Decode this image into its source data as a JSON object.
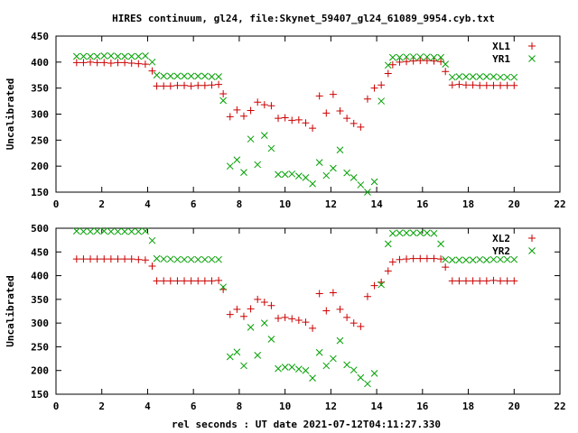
{
  "figure": {
    "title": "HIRES continuum, gl24, file:Skynet_59407_gl24_61089_9954.cyb.txt",
    "xlabel": "rel seconds : UT date 2021-07-12T04:11:27.330"
  },
  "chart_data": [
    {
      "type": "scatter",
      "ylabel": "Uncalibrated",
      "xlim": [
        0,
        22
      ],
      "ylim": [
        150,
        450
      ],
      "xticks": [
        "0",
        "2",
        "4",
        "6",
        "8",
        "10",
        "12",
        "14",
        "16",
        "18",
        "20",
        "22"
      ],
      "yticks": [
        "150",
        "200",
        "250",
        "300",
        "350",
        "400",
        "450"
      ],
      "grid": false,
      "legend": "top-right",
      "series": [
        {
          "name": "XL1",
          "marker": "plus",
          "color": "#cc0000",
          "points": [
            [
              0.9,
              399
            ],
            [
              1.2,
              399
            ],
            [
              1.5,
              400
            ],
            [
              1.8,
              399
            ],
            [
              2.1,
              399
            ],
            [
              2.4,
              398
            ],
            [
              2.7,
              399
            ],
            [
              3.0,
              399
            ],
            [
              3.3,
              398
            ],
            [
              3.6,
              397
            ],
            [
              3.9,
              396
            ],
            [
              4.2,
              383
            ],
            [
              4.4,
              354
            ],
            [
              4.7,
              354
            ],
            [
              5.0,
              354
            ],
            [
              5.3,
              355
            ],
            [
              5.6,
              355
            ],
            [
              5.9,
              354
            ],
            [
              6.2,
              355
            ],
            [
              6.5,
              355
            ],
            [
              6.8,
              356
            ],
            [
              7.1,
              357
            ],
            [
              7.3,
              339
            ],
            [
              7.6,
              295
            ],
            [
              7.9,
              308
            ],
            [
              8.2,
              296
            ],
            [
              8.5,
              307
            ],
            [
              8.8,
              323
            ],
            [
              9.1,
              318
            ],
            [
              9.4,
              316
            ],
            [
              9.7,
              292
            ],
            [
              10.0,
              293
            ],
            [
              10.3,
              288
            ],
            [
              10.6,
              289
            ],
            [
              10.9,
              283
            ],
            [
              11.2,
              273
            ],
            [
              11.5,
              335
            ],
            [
              11.8,
              302
            ],
            [
              12.1,
              338
            ],
            [
              12.4,
              306
            ],
            [
              12.7,
              292
            ],
            [
              13.0,
              282
            ],
            [
              13.3,
              275
            ],
            [
              13.6,
              329
            ],
            [
              13.9,
              350
            ],
            [
              14.2,
              356
            ],
            [
              14.5,
              378
            ],
            [
              14.7,
              395
            ],
            [
              15.0,
              400
            ],
            [
              15.3,
              401
            ],
            [
              15.6,
              402
            ],
            [
              15.9,
              403
            ],
            [
              16.2,
              403
            ],
            [
              16.5,
              402
            ],
            [
              16.8,
              401
            ],
            [
              17.0,
              382
            ],
            [
              17.3,
              356
            ],
            [
              17.6,
              357
            ],
            [
              17.9,
              356
            ],
            [
              18.2,
              356
            ],
            [
              18.5,
              355
            ],
            [
              18.8,
              355
            ],
            [
              19.1,
              355
            ],
            [
              19.4,
              355
            ],
            [
              19.7,
              355
            ],
            [
              20.0,
              355
            ]
          ]
        },
        {
          "name": "YR1",
          "marker": "cross",
          "color": "#00a000",
          "points": [
            [
              0.9,
              411
            ],
            [
              1.2,
              411
            ],
            [
              1.5,
              411
            ],
            [
              1.8,
              411
            ],
            [
              2.1,
              412
            ],
            [
              2.4,
              412
            ],
            [
              2.7,
              411
            ],
            [
              3.0,
              411
            ],
            [
              3.3,
              411
            ],
            [
              3.6,
              411
            ],
            [
              3.9,
              412
            ],
            [
              4.2,
              400
            ],
            [
              4.4,
              375
            ],
            [
              4.7,
              373
            ],
            [
              5.0,
              373
            ],
            [
              5.3,
              373
            ],
            [
              5.6,
              373
            ],
            [
              5.9,
              373
            ],
            [
              6.2,
              373
            ],
            [
              6.5,
              373
            ],
            [
              6.8,
              372
            ],
            [
              7.1,
              372
            ],
            [
              7.3,
              326
            ],
            [
              7.6,
              200
            ],
            [
              7.9,
              212
            ],
            [
              8.2,
              188
            ],
            [
              8.5,
              252
            ],
            [
              8.8,
              203
            ],
            [
              9.1,
              259
            ],
            [
              9.4,
              234
            ],
            [
              9.7,
              184
            ],
            [
              10.0,
              184
            ],
            [
              10.3,
              185
            ],
            [
              10.6,
              181
            ],
            [
              10.9,
              178
            ],
            [
              11.2,
              166
            ],
            [
              11.5,
              207
            ],
            [
              11.8,
              182
            ],
            [
              12.1,
              196
            ],
            [
              12.4,
              231
            ],
            [
              12.7,
              187
            ],
            [
              13.0,
              178
            ],
            [
              13.3,
              164
            ],
            [
              13.6,
              150
            ],
            [
              13.9,
              170
            ],
            [
              14.2,
              325
            ],
            [
              14.5,
              394
            ],
            [
              14.7,
              409
            ],
            [
              15.0,
              409
            ],
            [
              15.3,
              410
            ],
            [
              15.6,
              410
            ],
            [
              15.9,
              410
            ],
            [
              16.2,
              410
            ],
            [
              16.5,
              409
            ],
            [
              16.8,
              409
            ],
            [
              17.0,
              396
            ],
            [
              17.3,
              371
            ],
            [
              17.6,
              372
            ],
            [
              17.9,
              372
            ],
            [
              18.2,
              372
            ],
            [
              18.5,
              372
            ],
            [
              18.8,
              372
            ],
            [
              19.1,
              372
            ],
            [
              19.4,
              371
            ],
            [
              19.7,
              371
            ],
            [
              20.0,
              371
            ]
          ]
        }
      ]
    },
    {
      "type": "scatter",
      "ylabel": "Uncalibrated",
      "xlim": [
        0,
        22
      ],
      "ylim": [
        150,
        500
      ],
      "xticks": [
        "0",
        "2",
        "4",
        "6",
        "8",
        "10",
        "12",
        "14",
        "16",
        "18",
        "20",
        "22"
      ],
      "yticks": [
        "150",
        "200",
        "250",
        "300",
        "350",
        "400",
        "450",
        "500"
      ],
      "grid": false,
      "legend": "top-right",
      "series": [
        {
          "name": "XL2",
          "marker": "plus",
          "color": "#cc0000",
          "points": [
            [
              0.9,
              435
            ],
            [
              1.2,
              435
            ],
            [
              1.5,
              435
            ],
            [
              1.8,
              435
            ],
            [
              2.1,
              435
            ],
            [
              2.4,
              435
            ],
            [
              2.7,
              435
            ],
            [
              3.0,
              435
            ],
            [
              3.3,
              435
            ],
            [
              3.6,
              434
            ],
            [
              3.9,
              433
            ],
            [
              4.2,
              420
            ],
            [
              4.4,
              389
            ],
            [
              4.7,
              389
            ],
            [
              5.0,
              389
            ],
            [
              5.3,
              389
            ],
            [
              5.6,
              389
            ],
            [
              5.9,
              389
            ],
            [
              6.2,
              389
            ],
            [
              6.5,
              389
            ],
            [
              6.8,
              389
            ],
            [
              7.1,
              390
            ],
            [
              7.3,
              371
            ],
            [
              7.6,
              318
            ],
            [
              7.9,
              329
            ],
            [
              8.2,
              314
            ],
            [
              8.5,
              330
            ],
            [
              8.8,
              350
            ],
            [
              9.1,
              344
            ],
            [
              9.4,
              337
            ],
            [
              9.7,
              310
            ],
            [
              10.0,
              312
            ],
            [
              10.3,
              309
            ],
            [
              10.6,
              306
            ],
            [
              10.9,
              302
            ],
            [
              11.2,
              289
            ],
            [
              11.5,
              362
            ],
            [
              11.8,
              326
            ],
            [
              12.1,
              364
            ],
            [
              12.4,
              329
            ],
            [
              12.7,
              312
            ],
            [
              13.0,
              300
            ],
            [
              13.3,
              293
            ],
            [
              13.6,
              356
            ],
            [
              13.9,
              379
            ],
            [
              14.2,
              386
            ],
            [
              14.5,
              410
            ],
            [
              14.7,
              429
            ],
            [
              15.0,
              434
            ],
            [
              15.3,
              435
            ],
            [
              15.6,
              436
            ],
            [
              15.9,
              436
            ],
            [
              16.2,
              436
            ],
            [
              16.5,
              436
            ],
            [
              16.8,
              435
            ],
            [
              17.0,
              418
            ],
            [
              17.3,
              389
            ],
            [
              17.6,
              389
            ],
            [
              17.9,
              389
            ],
            [
              18.2,
              389
            ],
            [
              18.5,
              389
            ],
            [
              18.8,
              389
            ],
            [
              19.1,
              390
            ],
            [
              19.4,
              389
            ],
            [
              19.7,
              389
            ],
            [
              20.0,
              389
            ]
          ]
        },
        {
          "name": "YR2",
          "marker": "cross",
          "color": "#00a000",
          "points": [
            [
              0.9,
              494
            ],
            [
              1.2,
              493
            ],
            [
              1.5,
              493
            ],
            [
              1.8,
              494
            ],
            [
              2.1,
              494
            ],
            [
              2.4,
              493
            ],
            [
              2.7,
              493
            ],
            [
              3.0,
              493
            ],
            [
              3.3,
              493
            ],
            [
              3.6,
              493
            ],
            [
              3.9,
              494
            ],
            [
              4.2,
              474
            ],
            [
              4.4,
              436
            ],
            [
              4.7,
              435
            ],
            [
              5.0,
              435
            ],
            [
              5.3,
              434
            ],
            [
              5.6,
              434
            ],
            [
              5.9,
              434
            ],
            [
              6.2,
              434
            ],
            [
              6.5,
              434
            ],
            [
              6.8,
              434
            ],
            [
              7.1,
              434
            ],
            [
              7.3,
              376
            ],
            [
              7.6,
              229
            ],
            [
              7.9,
              239
            ],
            [
              8.2,
              210
            ],
            [
              8.5,
              291
            ],
            [
              8.8,
              232
            ],
            [
              9.1,
              300
            ],
            [
              9.4,
              266
            ],
            [
              9.7,
              204
            ],
            [
              10.0,
              207
            ],
            [
              10.3,
              207
            ],
            [
              10.6,
              203
            ],
            [
              10.9,
              200
            ],
            [
              11.2,
              184
            ],
            [
              11.5,
              238
            ],
            [
              11.8,
              210
            ],
            [
              12.1,
              225
            ],
            [
              12.4,
              263
            ],
            [
              12.7,
              212
            ],
            [
              13.0,
              201
            ],
            [
              13.3,
              185
            ],
            [
              13.6,
              172
            ],
            [
              13.9,
              194
            ],
            [
              14.2,
              381
            ],
            [
              14.5,
              467
            ],
            [
              14.7,
              489
            ],
            [
              15.0,
              490
            ],
            [
              15.3,
              490
            ],
            [
              15.6,
              490
            ],
            [
              15.9,
              490
            ],
            [
              16.2,
              490
            ],
            [
              16.5,
              489
            ],
            [
              16.8,
              467
            ],
            [
              17.0,
              434
            ],
            [
              17.3,
              433
            ],
            [
              17.6,
              433
            ],
            [
              17.9,
              433
            ],
            [
              18.2,
              433
            ],
            [
              18.5,
              434
            ],
            [
              18.8,
              433
            ],
            [
              19.1,
              434
            ],
            [
              19.4,
              434
            ],
            [
              19.7,
              434
            ],
            [
              20.0,
              434
            ]
          ]
        }
      ]
    }
  ]
}
